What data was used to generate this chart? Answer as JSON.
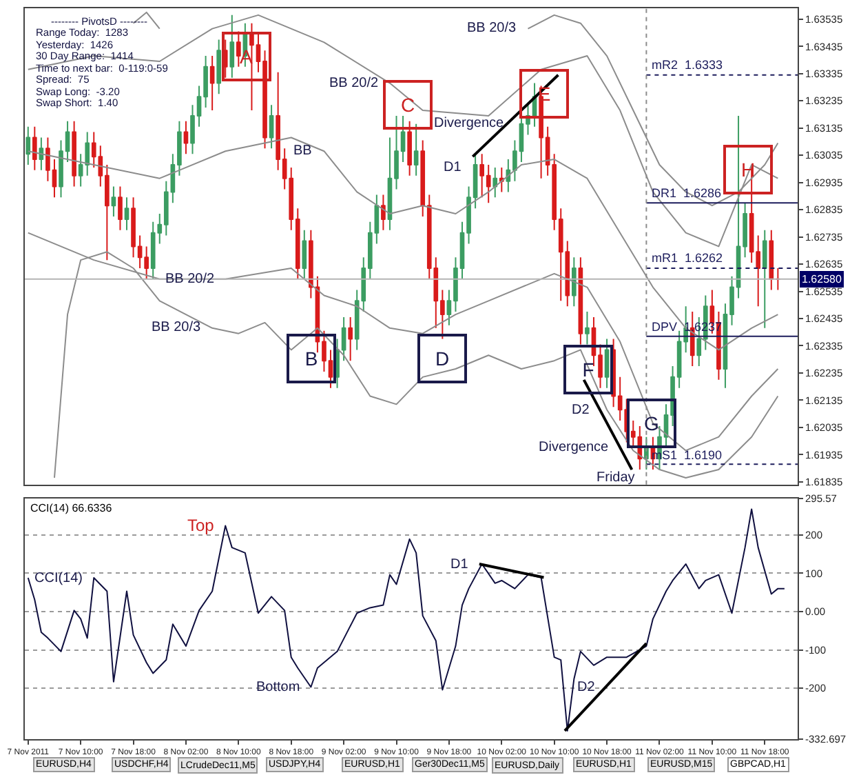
{
  "chart_data": [
    {
      "type": "candlestick",
      "tick_labels": "y",
      "xlim": [
        "2011-11-07T01:30",
        "2011-11-11T23:00"
      ],
      "ylim": [
        1.61825,
        1.63575
      ],
      "yticks": [
        1.63535,
        1.63435,
        1.63335,
        1.63235,
        1.63135,
        1.63035,
        1.62935,
        1.62835,
        1.62735,
        1.62635,
        1.62535,
        1.62435,
        1.62335,
        1.62235,
        1.62135,
        1.62035,
        1.61935,
        1.61835
      ],
      "x": [
        "2011-11-07T02:00",
        "2011-11-07T03:00",
        "2011-11-07T04:00",
        "2011-11-07T05:00",
        "2011-11-07T06:00",
        "2011-11-07T07:00",
        "2011-11-07T08:00",
        "2011-11-07T09:00",
        "2011-11-07T10:00",
        "2011-11-07T11:00",
        "2011-11-07T12:00",
        "2011-11-07T13:00",
        "2011-11-07T14:00",
        "2011-11-07T15:00",
        "2011-11-07T16:00",
        "2011-11-07T17:00",
        "2011-11-07T18:00",
        "2011-11-07T19:00",
        "2011-11-07T20:00",
        "2011-11-07T21:00",
        "2011-11-07T22:00",
        "2011-11-07T23:00",
        "2011-11-08T00:00",
        "2011-11-08T01:00",
        "2011-11-08T02:00",
        "2011-11-08T03:00",
        "2011-11-08T04:00",
        "2011-11-08T05:00",
        "2011-11-08T06:00",
        "2011-11-08T07:00",
        "2011-11-08T08:00",
        "2011-11-08T09:00",
        "2011-11-08T10:00",
        "2011-11-08T11:00",
        "2011-11-08T12:00",
        "2011-11-08T13:00",
        "2011-11-08T14:00",
        "2011-11-08T15:00",
        "2011-11-08T16:00",
        "2011-11-08T17:00",
        "2011-11-08T18:00",
        "2011-11-08T19:00",
        "2011-11-08T20:00",
        "2011-11-08T21:00",
        "2011-11-08T22:00",
        "2011-11-08T23:00",
        "2011-11-09T00:00",
        "2011-11-09T01:00",
        "2011-11-09T02:00",
        "2011-11-09T03:00",
        "2011-11-09T04:00",
        "2011-11-09T05:00",
        "2011-11-09T06:00",
        "2011-11-09T07:00",
        "2011-11-09T08:00",
        "2011-11-09T09:00",
        "2011-11-09T10:00",
        "2011-11-09T11:00",
        "2011-11-09T12:00",
        "2011-11-09T13:00",
        "2011-11-09T14:00",
        "2011-11-09T15:00",
        "2011-11-09T16:00",
        "2011-11-09T17:00",
        "2011-11-09T18:00",
        "2011-11-09T19:00",
        "2011-11-09T20:00",
        "2011-11-09T21:00",
        "2011-11-09T22:00",
        "2011-11-09T23:00",
        "2011-11-10T00:00",
        "2011-11-10T01:00",
        "2011-11-10T02:00",
        "2011-11-10T03:00",
        "2011-11-10T04:00",
        "2011-11-10T05:00",
        "2011-11-10T06:00",
        "2011-11-10T07:00",
        "2011-11-10T08:00",
        "2011-11-10T09:00",
        "2011-11-10T10:00",
        "2011-11-10T11:00",
        "2011-11-10T12:00",
        "2011-11-10T13:00",
        "2011-11-10T14:00",
        "2011-11-10T15:00",
        "2011-11-10T16:00",
        "2011-11-10T17:00",
        "2011-11-10T18:00",
        "2011-11-10T19:00",
        "2011-11-10T20:00",
        "2011-11-10T21:00",
        "2011-11-10T22:00",
        "2011-11-10T23:00",
        "2011-11-11T00:00",
        "2011-11-11T01:00",
        "2011-11-11T02:00",
        "2011-11-11T03:00",
        "2011-11-11T04:00",
        "2011-11-11T05:00",
        "2011-11-11T06:00",
        "2011-11-11T07:00",
        "2011-11-11T08:00",
        "2011-11-11T09:00",
        "2011-11-11T10:00",
        "2011-11-11T11:00",
        "2011-11-11T12:00",
        "2011-11-11T13:00",
        "2011-11-11T14:00",
        "2011-11-11T15:00",
        "2011-11-11T16:00",
        "2011-11-11T17:00",
        "2011-11-11T18:00",
        "2011-11-11T19:00",
        "2011-11-11T20:00"
      ],
      "ohlc": [
        [
          1.6304,
          1.6314,
          1.63,
          1.631
        ],
        [
          1.631,
          1.6314,
          1.6298,
          1.6302
        ],
        [
          1.6302,
          1.631,
          1.6298,
          1.6306
        ],
        [
          1.6306,
          1.631,
          1.6294,
          1.6298
        ],
        [
          1.6298,
          1.6302,
          1.6288,
          1.6292
        ],
        [
          1.6292,
          1.6309,
          1.6288,
          1.6305
        ],
        [
          1.6305,
          1.6316,
          1.6301,
          1.6312
        ],
        [
          1.6312,
          1.6316,
          1.6292,
          1.6296
        ],
        [
          1.6296,
          1.6304,
          1.6292,
          1.63
        ],
        [
          1.63,
          1.6312,
          1.6296,
          1.6308
        ],
        [
          1.6308,
          1.6312,
          1.6299,
          1.6303
        ],
        [
          1.6303,
          1.6307,
          1.6292,
          1.6296
        ],
        [
          1.6296,
          1.63,
          1.6265,
          1.6285
        ],
        [
          1.6285,
          1.6292,
          1.6281,
          1.6288
        ],
        [
          1.6288,
          1.6292,
          1.6276,
          1.628
        ],
        [
          1.628,
          1.6288,
          1.6276,
          1.6284
        ],
        [
          1.6284,
          1.6288,
          1.6266,
          1.627
        ],
        [
          1.627,
          1.6274,
          1.6262,
          1.6266
        ],
        [
          1.6266,
          1.627,
          1.6258,
          1.6262
        ],
        [
          1.6262,
          1.6279,
          1.6258,
          1.6275
        ],
        [
          1.6275,
          1.6282,
          1.6271,
          1.6278
        ],
        [
          1.6278,
          1.6294,
          1.6274,
          1.629
        ],
        [
          1.629,
          1.6304,
          1.6286,
          1.63
        ],
        [
          1.63,
          1.6316,
          1.6296,
          1.6312
        ],
        [
          1.6312,
          1.6316,
          1.6304,
          1.6308
        ],
        [
          1.6308,
          1.6322,
          1.6304,
          1.6318
        ],
        [
          1.6318,
          1.6329,
          1.6314,
          1.6325
        ],
        [
          1.6325,
          1.634,
          1.6321,
          1.6336
        ],
        [
          1.6336,
          1.634,
          1.632,
          1.633
        ],
        [
          1.633,
          1.6346,
          1.6326,
          1.6342
        ],
        [
          1.6342,
          1.6346,
          1.6332,
          1.6336
        ],
        [
          1.6336,
          1.6355,
          1.6332,
          1.6345
        ],
        [
          1.6345,
          1.6349,
          1.6336,
          1.634
        ],
        [
          1.634,
          1.6352,
          1.6336,
          1.6348
        ],
        [
          1.6348,
          1.6352,
          1.632,
          1.6344
        ],
        [
          1.6344,
          1.6348,
          1.6334,
          1.6338
        ],
        [
          1.6338,
          1.6342,
          1.6306,
          1.631
        ],
        [
          1.631,
          1.6322,
          1.6306,
          1.6318
        ],
        [
          1.6318,
          1.6334,
          1.6298,
          1.6302
        ],
        [
          1.6302,
          1.6306,
          1.6291,
          1.6295
        ],
        [
          1.6295,
          1.6299,
          1.6276,
          1.628
        ],
        [
          1.628,
          1.6284,
          1.6258,
          1.6262
        ],
        [
          1.6262,
          1.6276,
          1.6258,
          1.6272
        ],
        [
          1.6272,
          1.6276,
          1.6251,
          1.6255
        ],
        [
          1.6255,
          1.6259,
          1.6231,
          1.6235
        ],
        [
          1.6235,
          1.6239,
          1.6224,
          1.6228
        ],
        [
          1.6228,
          1.6232,
          1.6218,
          1.6222
        ],
        [
          1.6222,
          1.6236,
          1.6218,
          1.6232
        ],
        [
          1.6232,
          1.6244,
          1.6228,
          1.624
        ],
        [
          1.624,
          1.6244,
          1.6228,
          1.6236
        ],
        [
          1.6236,
          1.6254,
          1.6232,
          1.625
        ],
        [
          1.625,
          1.6266,
          1.6246,
          1.6262
        ],
        [
          1.6262,
          1.6279,
          1.6258,
          1.6275
        ],
        [
          1.6275,
          1.6289,
          1.6271,
          1.6285
        ],
        [
          1.6285,
          1.6289,
          1.6276,
          1.628
        ],
        [
          1.628,
          1.631,
          1.6276,
          1.6295
        ],
        [
          1.6295,
          1.6318,
          1.6291,
          1.6305
        ],
        [
          1.6305,
          1.6318,
          1.6301,
          1.6312
        ],
        [
          1.6312,
          1.6316,
          1.6296,
          1.63
        ],
        [
          1.63,
          1.6315,
          1.6296,
          1.6305
        ],
        [
          1.6305,
          1.6309,
          1.6281,
          1.6285
        ],
        [
          1.6285,
          1.6289,
          1.6258,
          1.6262
        ],
        [
          1.6262,
          1.6266,
          1.624,
          1.625
        ],
        [
          1.625,
          1.6254,
          1.6236,
          1.6245
        ],
        [
          1.6245,
          1.6254,
          1.6241,
          1.625
        ],
        [
          1.625,
          1.6266,
          1.6246,
          1.6262
        ],
        [
          1.6262,
          1.6279,
          1.6258,
          1.6275
        ],
        [
          1.6275,
          1.6292,
          1.6271,
          1.6288
        ],
        [
          1.6288,
          1.6304,
          1.6284,
          1.63
        ],
        [
          1.63,
          1.6304,
          1.6288,
          1.6296
        ],
        [
          1.6296,
          1.63,
          1.6286,
          1.6292
        ],
        [
          1.6292,
          1.6299,
          1.6288,
          1.6295
        ],
        [
          1.6295,
          1.6299,
          1.629,
          1.6294
        ],
        [
          1.6294,
          1.6302,
          1.629,
          1.6298
        ],
        [
          1.6298,
          1.6309,
          1.6294,
          1.6305
        ],
        [
          1.6305,
          1.6317,
          1.6301,
          1.6315
        ],
        [
          1.6315,
          1.6322,
          1.6311,
          1.6318
        ],
        [
          1.6318,
          1.633,
          1.6314,
          1.6325
        ],
        [
          1.6325,
          1.6329,
          1.6295,
          1.631
        ],
        [
          1.631,
          1.6314,
          1.6296,
          1.63
        ],
        [
          1.63,
          1.6304,
          1.6276,
          1.628
        ],
        [
          1.628,
          1.6284,
          1.625,
          1.6268
        ],
        [
          1.6268,
          1.6272,
          1.6248,
          1.6252
        ],
        [
          1.6252,
          1.6266,
          1.6248,
          1.6262
        ],
        [
          1.6262,
          1.6266,
          1.6234,
          1.6238
        ],
        [
          1.6238,
          1.6246,
          1.6234,
          1.624
        ],
        [
          1.624,
          1.6244,
          1.6226,
          1.623
        ],
        [
          1.623,
          1.6234,
          1.6218,
          1.6222
        ],
        [
          1.6222,
          1.6236,
          1.6218,
          1.6232
        ],
        [
          1.6232,
          1.6236,
          1.6211,
          1.6215
        ],
        [
          1.6215,
          1.6222,
          1.6206,
          1.621
        ],
        [
          1.621,
          1.6214,
          1.6198,
          1.6202
        ],
        [
          1.6202,
          1.6206,
          1.6196,
          1.62
        ],
        [
          1.62,
          1.6204,
          1.6188,
          1.6192
        ],
        [
          1.6192,
          1.62,
          1.6188,
          1.6196
        ],
        [
          1.6196,
          1.62,
          1.6188,
          1.6192
        ],
        [
          1.6192,
          1.6204,
          1.6188,
          1.62
        ],
        [
          1.62,
          1.6212,
          1.6196,
          1.6208
        ],
        [
          1.6208,
          1.6226,
          1.6204,
          1.6222
        ],
        [
          1.6222,
          1.6239,
          1.6218,
          1.6235
        ],
        [
          1.6235,
          1.6248,
          1.6231,
          1.624
        ],
        [
          1.624,
          1.6246,
          1.6226,
          1.623
        ],
        [
          1.623,
          1.6244,
          1.6226,
          1.6236
        ],
        [
          1.6236,
          1.6252,
          1.6232,
          1.6248
        ],
        [
          1.6248,
          1.6254,
          1.6238,
          1.6242
        ],
        [
          1.6242,
          1.6246,
          1.6221,
          1.6225
        ],
        [
          1.6225,
          1.6249,
          1.6218,
          1.6245
        ],
        [
          1.6245,
          1.6259,
          1.6241,
          1.6255
        ],
        [
          1.6255,
          1.6318,
          1.6251,
          1.627
        ],
        [
          1.627,
          1.6286,
          1.6266,
          1.6282
        ],
        [
          1.6282,
          1.63,
          1.6264,
          1.6268
        ],
        [
          1.6268,
          1.6274,
          1.6248,
          1.6262
        ],
        [
          1.6262,
          1.6276,
          1.624,
          1.6272
        ],
        [
          1.6272,
          1.6276,
          1.6254,
          1.6258
        ],
        [
          1.6258,
          1.6262,
          1.6254,
          1.6258
        ]
      ],
      "series": [
        {
          "type": "line",
          "color": "#8c8c8c",
          "x": [
            "2011-11-07T02:00",
            "2011-11-07T12:00",
            "2011-11-07T22:00",
            "2011-11-08T08:00",
            "2011-11-08T18:00",
            "2011-11-08T23:00",
            "2011-11-09T04:00",
            "2011-11-09T09:00",
            "2011-11-09T14:00",
            "2011-11-09T19:00",
            "2011-11-10T00:00",
            "2011-11-10T05:00",
            "2011-11-10T10:00",
            "2011-11-10T15:00",
            "2011-11-10T20:00",
            "2011-11-11T01:00",
            "2011-11-11T06:00",
            "2011-11-11T11:00",
            "2011-11-11T16:00",
            "2011-11-11T20:00"
          ],
          "values": [
            1.6305,
            1.63,
            1.6295,
            1.6305,
            1.631,
            1.6305,
            1.629,
            1.6282,
            1.6285,
            1.6282,
            1.629,
            1.63,
            1.6302,
            1.6295,
            1.6275,
            1.6255,
            1.624,
            1.6232,
            1.624,
            1.6245
          ]
        },
        {
          "type": "line",
          "color": "#8c8c8c",
          "x": [
            "2011-11-07T02:00",
            "2011-11-07T12:00",
            "2011-11-07T22:00",
            "2011-11-08T06:00",
            "2011-11-08T13:00",
            "2011-11-08T23:00",
            "2011-11-09T09:00",
            "2011-11-09T14:00",
            "2011-11-10T00:00",
            "2011-11-10T08:00",
            "2011-11-10T15:00",
            "2011-11-10T20:00",
            "2011-11-11T01:00",
            "2011-11-11T06:00",
            "2011-11-11T11:00",
            "2011-11-11T16:00",
            "2011-11-11T20:00"
          ],
          "values": [
            1.6335,
            1.634,
            1.6338,
            1.635,
            1.6355,
            1.6345,
            1.633,
            1.632,
            1.6318,
            1.6335,
            1.634,
            1.632,
            1.629,
            1.6275,
            1.627,
            1.63,
            1.6295
          ]
        },
        {
          "type": "line",
          "color": "#8c8c8c",
          "x": [
            "2011-11-07T02:00",
            "2011-11-07T12:00",
            "2011-11-07T22:00",
            "2011-11-08T08:00",
            "2011-11-08T18:00",
            "2011-11-08T23:00",
            "2011-11-09T04:00",
            "2011-11-09T09:00",
            "2011-11-09T14:00",
            "2011-11-09T19:00",
            "2011-11-10T00:00",
            "2011-11-10T10:00",
            "2011-11-10T15:00",
            "2011-11-10T20:00",
            "2011-11-11T01:00",
            "2011-11-11T06:00",
            "2011-11-11T11:00",
            "2011-11-11T16:00",
            "2011-11-11T20:00"
          ],
          "values": [
            1.6275,
            1.6265,
            1.6258,
            1.6258,
            1.6262,
            1.6252,
            1.6248,
            1.624,
            1.6238,
            1.6245,
            1.625,
            1.626,
            1.6255,
            1.6235,
            1.6205,
            1.6195,
            1.62,
            1.6215,
            1.6225
          ]
        },
        {
          "type": "line",
          "color": "#8c8c8c",
          "x": [
            "2011-11-07T18:00",
            "2011-11-07T20:00",
            "2011-11-07T22:00",
            "2011-11-08T00:00",
            "2011-11-10T06:00",
            "2011-11-10T10:00",
            "2011-11-10T14:00",
            "2011-11-10T18:00",
            "2011-11-10T22:00",
            "2011-11-11T02:00",
            "2011-11-11T06:00",
            "2011-11-11T10:00",
            "2011-11-11T14:00",
            "2011-11-11T18:00",
            "2011-11-11T20:00"
          ],
          "values": [
            1.6352,
            1.6356,
            1.635,
            null,
            1.635,
            1.6355,
            1.6352,
            1.634,
            1.632,
            1.63,
            1.629,
            1.6285,
            1.629,
            1.63,
            1.6308
          ]
        },
        {
          "type": "line",
          "color": "#8c8c8c",
          "x": [
            "2011-11-07T06:00",
            "2011-11-07T08:00",
            "2011-11-07T10:00",
            "2011-11-07T14:00",
            "2011-11-07T18:00",
            "2011-11-07T22:00",
            "2011-11-08T06:00",
            "2011-11-08T10:00",
            "2011-11-08T14:00",
            "2011-11-08T18:00",
            "2011-11-08T22:00",
            "2011-11-09T02:00",
            "2011-11-09T06:00",
            "2011-11-09T10:00",
            "2011-11-09T14:00",
            "2011-11-09T19:00",
            "2011-11-10T00:00",
            "2011-11-10T05:00",
            "2011-11-10T10:00",
            "2011-11-10T14:00",
            "2011-11-10T18:00",
            "2011-11-10T22:00",
            "2011-11-11T02:00",
            "2011-11-11T06:00",
            "2011-11-11T11:00",
            "2011-11-11T16:00",
            "2011-11-11T20:00"
          ],
          "values": [
            1.6185,
            1.6245,
            1.6265,
            1.6268,
            1.6262,
            1.625,
            1.624,
            1.6238,
            1.6242,
            1.6232,
            1.624,
            1.623,
            1.6215,
            1.6212,
            1.6222,
            1.6225,
            1.623,
            1.6225,
            1.6228,
            1.6232,
            1.621,
            1.6195,
            1.6188,
            1.6185,
            1.6188,
            1.62,
            1.6215
          ]
        },
        {
          "type": "line",
          "name": "mR2  1.6333",
          "color": "#1c1c5c",
          "line_style": "dotted",
          "x": [
            "2011-11-11T00:00",
            "2011-11-11T23:00"
          ],
          "values": [
            1.6333,
            1.6333
          ]
        },
        {
          "type": "line",
          "name": "DR1  1.6286",
          "color": "#1c1c5c",
          "line_style": "solid",
          "x": [
            "2011-11-11T00:00",
            "2011-11-11T23:00"
          ],
          "values": [
            1.6286,
            1.6286
          ]
        },
        {
          "type": "line",
          "name": "mR1  1.6262",
          "color": "#1c1c5c",
          "line_style": "dotted",
          "x": [
            "2011-11-11T00:00",
            "2011-11-11T23:00"
          ],
          "values": [
            1.6262,
            1.6262
          ]
        },
        {
          "type": "line",
          "name": "DPV  1.6237",
          "color": "#1c1c5c",
          "line_style": "solid",
          "x": [
            "2011-11-11T00:00",
            "2011-11-11T23:00"
          ],
          "values": [
            1.6237,
            1.6237
          ]
        },
        {
          "type": "line",
          "name": "mS1  1.6190",
          "color": "#1c1c5c",
          "line_style": "dotted",
          "x": [
            "2011-11-11T00:00",
            "2011-11-11T23:00"
          ],
          "values": [
            1.619,
            1.619
          ]
        },
        {
          "type": "line",
          "color": "#000000",
          "x": [
            "2011-11-09T21:36",
            "2011-11-10T10:36"
          ],
          "values": [
            1.6303,
            1.6333
          ]
        },
        {
          "type": "line",
          "color": "#000000",
          "x": [
            "2011-11-10T14:30",
            "2011-11-10T21:48"
          ],
          "values": [
            1.6221,
            1.6188
          ]
        }
      ],
      "ref_lines": [
        {
          "axis": "y",
          "value": 1.6258,
          "label": "1.62580",
          "color": "#b4b4b4",
          "line_style": "solid"
        },
        {
          "axis": "x",
          "value": "2011-11-11T00:00",
          "color": "#8c8c8c",
          "line_style": "dotted"
        }
      ],
      "annotations": [
        {
          "text": "A",
          "x": "2011-11-08T11:18",
          "y": 1.634
        },
        {
          "text": "B",
          "x": "2011-11-08T21:06",
          "y": 1.6229
        },
        {
          "text": "C",
          "x": "2011-11-09T11:48",
          "y": 1.6322
        },
        {
          "text": "D",
          "x": "2011-11-09T16:54",
          "y": 1.6229
        },
        {
          "text": "E",
          "x": "2011-11-10T08:24",
          "y": 1.6326
        },
        {
          "text": "F",
          "x": "2011-11-10T15:06",
          "y": 1.6225
        },
        {
          "text": "G",
          "x": "2011-11-11T00:42",
          "y": 1.6205
        },
        {
          "text": "H",
          "x": "2011-11-11T15:24",
          "y": 1.6298
        },
        {
          "text": "BB",
          "x": "2011-11-08T23:00",
          "y": 1.6305
        },
        {
          "text": "BB 20/2",
          "x": "2011-11-09T09:00",
          "y": 1.633
        },
        {
          "text": "BB 20/2",
          "x": "2011-11-08T08:00",
          "y": 1.6258
        },
        {
          "text": "BB 20/3",
          "x": "2011-11-10T06:00",
          "y": 1.635
        },
        {
          "text": "BB 20/3",
          "x": "2011-11-08T06:00",
          "y": 1.624
        },
        {
          "text": "D1",
          "x": "2011-11-09T21:36",
          "y": 1.6299
        },
        {
          "text": "Divergence",
          "x": "2011-11-10T04:06",
          "y": 1.6315
        },
        {
          "text": "D2",
          "x": "2011-11-10T17:00",
          "y": 1.62097
        },
        {
          "text": "Divergence",
          "x": "2011-11-10T20:00",
          "y": 1.6196
        },
        {
          "text": "Friday",
          "x": "2011-11-11T00:00",
          "y": 1.6185
        }
      ]
    },
    {
      "type": "line",
      "title": "CCI(14) 66.6336",
      "xlim": [
        "2011-11-07T01:30",
        "2011-11-11T23:00"
      ],
      "ylim": [
        -332.697,
        295.57
      ],
      "yticks": [
        295.57,
        200,
        100,
        {
          "value": 0,
          "label": "0.00"
        },
        -100,
        -200,
        -332.697
      ],
      "xticks": [
        {
          "value": "2011-11-07T02:00",
          "label": "7 Nov 2011"
        },
        {
          "value": "2011-11-07T10:00",
          "label": "7 Nov 10:00"
        },
        {
          "value": "2011-11-07T18:00",
          "label": "7 Nov 18:00"
        },
        {
          "value": "2011-11-08T02:00",
          "label": "8 Nov 02:00"
        },
        {
          "value": "2011-11-08T10:00",
          "label": "8 Nov 10:00"
        },
        {
          "value": "2011-11-08T18:00",
          "label": "8 Nov 18:00"
        },
        {
          "value": "2011-11-09T02:00",
          "label": "9 Nov 02:00"
        },
        {
          "value": "2011-11-09T10:00",
          "label": "9 Nov 10:00"
        },
        {
          "value": "2011-11-09T18:00",
          "label": "9 Nov 18:00"
        },
        {
          "value": "2011-11-10T02:00",
          "label": "10 Nov 02:00"
        },
        {
          "value": "2011-11-10T10:00",
          "label": "10 Nov 10:00"
        },
        {
          "value": "2011-11-10T18:00",
          "label": "10 Nov 18:00"
        },
        {
          "value": "2011-11-11T02:00",
          "label": "11 Nov 02:00"
        },
        {
          "value": "2011-11-11T10:00",
          "label": "11 Nov 10:00"
        },
        {
          "value": "2011-11-11T18:00",
          "label": "11 Nov 18:00"
        }
      ],
      "grid": "y",
      "series": [
        {
          "color": "#101040",
          "x": [
            "2011-11-07T02:00",
            "2011-11-07T03:00",
            "2011-11-07T04:00",
            "2011-11-07T05:00",
            "2011-11-07T07:00",
            "2011-11-07T09:00",
            "2011-11-07T10:00",
            "2011-11-07T11:00",
            "2011-11-07T12:00",
            "2011-11-07T14:00",
            "2011-11-07T15:00",
            "2011-11-07T17:00",
            "2011-11-07T18:00",
            "2011-11-07T20:00",
            "2011-11-07T21:00",
            "2011-11-07T23:00",
            "2011-11-08T00:00",
            "2011-11-08T02:00",
            "2011-11-08T04:00",
            "2011-11-08T06:00",
            "2011-11-08T08:00",
            "2011-11-08T09:00",
            "2011-11-08T11:00",
            "2011-11-08T13:00",
            "2011-11-08T15:00",
            "2011-11-08T17:00",
            "2011-11-08T18:00",
            "2011-11-08T19:00",
            "2011-11-08T21:00",
            "2011-11-08T22:00",
            "2011-11-09T01:00",
            "2011-11-09T04:00",
            "2011-11-09T06:00",
            "2011-11-09T08:00",
            "2011-11-09T09:00",
            "2011-11-09T10:00",
            "2011-11-09T12:00",
            "2011-11-09T13:00",
            "2011-11-09T14:00",
            "2011-11-09T16:00",
            "2011-11-09T17:00",
            "2011-11-09T19:00",
            "2011-11-09T20:00",
            "2011-11-09T21:00",
            "2011-11-09T23:00",
            "2011-11-10T01:00",
            "2011-11-10T02:00",
            "2011-11-10T04:00",
            "2011-11-10T06:00",
            "2011-11-10T08:00",
            "2011-11-10T10:00",
            "2011-11-10T11:00",
            "2011-11-10T12:00",
            "2011-11-10T13:00",
            "2011-11-10T14:00",
            "2011-11-10T16:00",
            "2011-11-10T18:00",
            "2011-11-10T21:00",
            "2011-11-11T00:00",
            "2011-11-11T01:00",
            "2011-11-11T03:00",
            "2011-11-11T04:00",
            "2011-11-11T06:00",
            "2011-11-11T08:00",
            "2011-11-11T09:00",
            "2011-11-11T11:00",
            "2011-11-11T13:00",
            "2011-11-11T15:00",
            "2011-11-11T16:00",
            "2011-11-11T17:00",
            "2011-11-11T19:00",
            "2011-11-11T20:00",
            "2011-11-11T21:00"
          ],
          "values": [
            88,
            31,
            -54,
            -69,
            -104,
            3,
            -19,
            -69,
            88,
            53,
            -183,
            53,
            -61,
            -133,
            -161,
            -126,
            -33,
            -90,
            3,
            53,
            224,
            167,
            153,
            -4,
            39,
            3,
            -119,
            -147,
            -197,
            -147,
            -104,
            -4,
            10,
            17,
            96,
            71,
            189,
            153,
            -11,
            -76,
            -204,
            -90,
            17,
            60,
            124,
            74,
            81,
            60,
            96,
            89,
            -119,
            -126,
            -311,
            -176,
            -104,
            -140,
            -119,
            -119,
            -90,
            -19,
            53,
            81,
            124,
            60,
            81,
            96,
            -4,
            167,
            267,
            167,
            46,
            60,
            60
          ]
        },
        {
          "color": "#000000",
          "x": [
            "2011-11-09T22:36",
            "2011-11-10T08:24"
          ],
          "values": [
            124,
            89
          ]
        },
        {
          "color": "#000000",
          "x": [
            "2011-11-10T11:36",
            "2011-11-11T00:00"
          ],
          "values": [
            -311,
            -83
          ]
        }
      ],
      "annotations": [
        {
          "text": "CCI(14)",
          "x": "2011-11-07T12:00",
          "y": 88
        },
        {
          "text": "Top",
          "x": "2011-11-08T08:00",
          "y": 224
        },
        {
          "text": "Bottom",
          "x": "2011-11-08T21:00",
          "y": -197
        },
        {
          "text": "D1",
          "x": "2011-11-09T22:36",
          "y": 124
        },
        {
          "text": "D2",
          "x": "2011-11-10T17:48",
          "y": -197
        }
      ]
    },
    {
      "type": "other",
      "annotations": [
        "-------- PivotsD --------",
        "Range Today:  1283",
        "Yesterday:  1426",
        "30 Day Range:  1414",
        "Time to next bar:  0-119:0-59",
        "Spread:  75",
        "Swap Long:  -3.20",
        "Swap Short:  1.40"
      ]
    },
    {
      "type": "other",
      "annotations": [
        "EURUSD,H4",
        "USDCHF,H4",
        "LCrudeDec11,M5",
        "USDJPY,H4",
        "EURUSD,H1",
        "Ger30Dec11,M5",
        "EURUSD,Daily",
        "EURUSD,H1",
        "EURUSD,M15",
        "GBPCAD,H1"
      ]
    }
  ]
}
